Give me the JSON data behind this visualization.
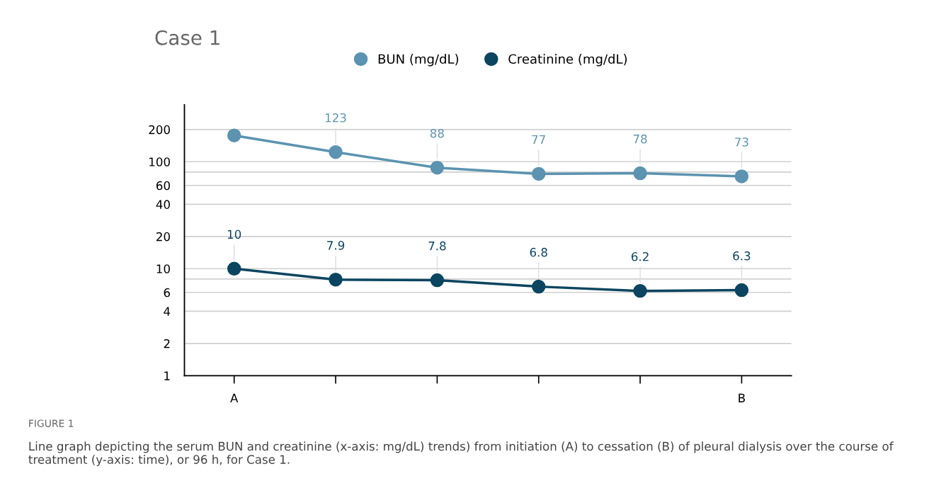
{
  "chart_data": {
    "type": "line",
    "title": "Case 1",
    "categories": [
      "A",
      null,
      null,
      null,
      null,
      "B"
    ],
    "series": [
      {
        "name": "BUN (mg/dL)",
        "color": "#5b93b0",
        "values": [
          176,
          123,
          88,
          77,
          78,
          73
        ],
        "value_labels": [
          null,
          "123",
          "88",
          "77",
          "78",
          "73"
        ]
      },
      {
        "name": "Creatinine (mg/dL)",
        "color": "#0b4560",
        "values": [
          10,
          7.9,
          7.8,
          6.8,
          6.2,
          6.3
        ],
        "value_labels": [
          "10",
          "7.9",
          "7.8",
          "6.8",
          "6.2",
          "6.3"
        ]
      }
    ],
    "log": "y",
    "ylim": [
      1,
      340
    ],
    "yticks": [
      1,
      2,
      4,
      6,
      {
        "value": 8,
        "label": null
      },
      10,
      20,
      40,
      60,
      {
        "value": 80,
        "label": null
      },
      100,
      200
    ],
    "grid": "y",
    "legend": "top",
    "marker": "circle",
    "line_style": "solid",
    "annotations": [
      "FIGURE 1",
      "Line graph depicting the serum BUN and creatinine (x-axis: mg/dL) trends) from initiation (A) to cessation (B) of pleural dialysis over the course of treatment (y-axis: time), or 96 h, for Case 1."
    ]
  }
}
